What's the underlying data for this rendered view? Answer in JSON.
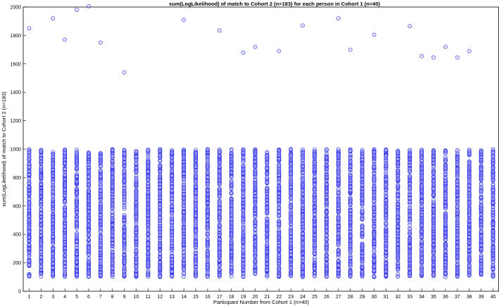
{
  "chart_data": {
    "type": "scatter",
    "title": "sum(LogLikelihood) of match to Cohort 2 (n=183) for each person in Cohort 1 (n=40)",
    "xlabel": "Participant Number from Cohort 1 (n=40)",
    "ylabel": "sum(LogLikelihood) of match to Cohort 2 (n=183)",
    "xlim": [
      0.5,
      40.5
    ],
    "ylim": [
      0,
      2000
    ],
    "xticks": [
      1,
      2,
      3,
      4,
      5,
      6,
      7,
      8,
      9,
      10,
      11,
      12,
      13,
      14,
      15,
      16,
      17,
      18,
      19,
      20,
      21,
      22,
      23,
      24,
      25,
      26,
      27,
      28,
      29,
      30,
      31,
      32,
      33,
      34,
      35,
      36,
      37,
      38,
      39,
      40
    ],
    "xtick_labels": [
      "1",
      "2",
      "3",
      "4",
      "5",
      "6",
      "7",
      "8",
      "9",
      "10",
      "11",
      "12",
      "13",
      "14",
      "15",
      "16",
      "17",
      "18",
      "19",
      "20",
      "21",
      "22",
      "23",
      "24",
      "25",
      "26",
      "27",
      "28",
      "29",
      "30",
      "31",
      "32",
      "33",
      "34",
      "35",
      "36",
      "37",
      "38",
      "39",
      "40"
    ],
    "yticks": [
      0,
      200,
      400,
      600,
      800,
      1000,
      1200,
      1400,
      1600,
      1800,
      2000
    ],
    "ytick_labels": [
      "0",
      "200",
      "400",
      "600",
      "800",
      "1000",
      "1200",
      "1400",
      "1600",
      "1800",
      "2000"
    ],
    "grid": false,
    "marker": "open circle",
    "marker_color": "#1a1adf",
    "marker_fill": "#b8b8ff",
    "points_per_participant": 183,
    "cluster_range": [
      100,
      1000
    ],
    "outliers": [
      {
        "x": 1,
        "y": 1850
      },
      {
        "x": 3,
        "y": 1920
      },
      {
        "x": 4,
        "y": 1770
      },
      {
        "x": 5,
        "y": 1980
      },
      {
        "x": 6,
        "y": 2005
      },
      {
        "x": 7,
        "y": 1750
      },
      {
        "x": 9,
        "y": 1540
      },
      {
        "x": 14,
        "y": 1910
      },
      {
        "x": 17,
        "y": 1835
      },
      {
        "x": 19,
        "y": 1680
      },
      {
        "x": 20,
        "y": 1720
      },
      {
        "x": 22,
        "y": 1690
      },
      {
        "x": 24,
        "y": 1870
      },
      {
        "x": 27,
        "y": 1920
      },
      {
        "x": 28,
        "y": 1700
      },
      {
        "x": 30,
        "y": 1805
      },
      {
        "x": 33,
        "y": 1865
      },
      {
        "x": 34,
        "y": 1655
      },
      {
        "x": 35,
        "y": 1645
      },
      {
        "x": 36,
        "y": 1720
      },
      {
        "x": 37,
        "y": 1645
      },
      {
        "x": 38,
        "y": 1690
      }
    ]
  }
}
